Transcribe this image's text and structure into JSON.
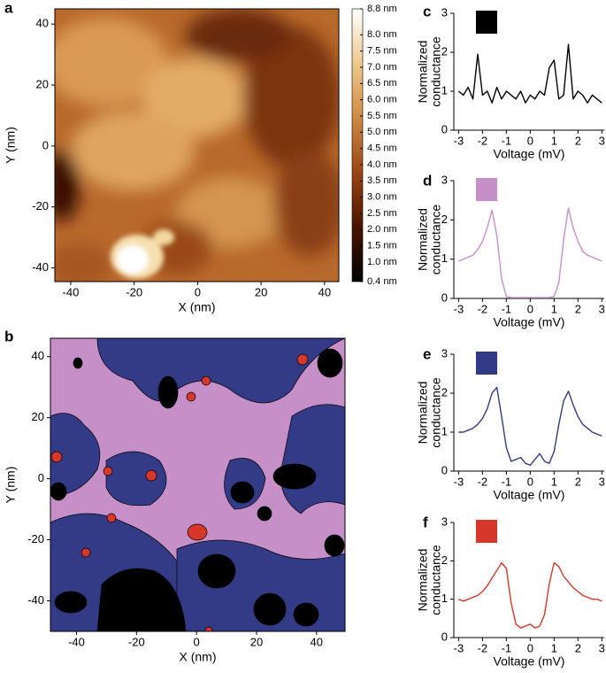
{
  "chart_data": [
    {
      "type": "image",
      "label": "a",
      "xlabel": "X (nm)",
      "ylabel": "Y (nm)",
      "xlim": [
        -45,
        44.5
      ],
      "ylim": [
        -44.5,
        45
      ],
      "xticks": [
        -40,
        -20,
        0,
        20,
        40
      ],
      "yticks": [
        -40,
        -20,
        0,
        20,
        40
      ],
      "colorbar": {
        "clim": [
          0.4,
          8.8
        ],
        "colormap": [
          "#000000",
          "#4a1400",
          "#9a4512",
          "#cf8a45",
          "#efc98c",
          "#ffffff"
        ],
        "ticks": [
          {
            "value": 8.8,
            "label": "8.8 nm"
          },
          {
            "value": 8.0,
            "label": "8.0 nm"
          },
          {
            "value": 7.5,
            "label": "7.5 nm"
          },
          {
            "value": 7.0,
            "label": "7.0 nm"
          },
          {
            "value": 6.5,
            "label": "6.5 nm"
          },
          {
            "value": 6.0,
            "label": "6.0 nm"
          },
          {
            "value": 5.5,
            "label": "5.5 nm"
          },
          {
            "value": 5.0,
            "label": "5.0 nm"
          },
          {
            "value": 4.5,
            "label": "4.5 nm"
          },
          {
            "value": 4.0,
            "label": "4.0 nm"
          },
          {
            "value": 3.5,
            "label": "3.5 nm"
          },
          {
            "value": 3.0,
            "label": "3.0 nm"
          },
          {
            "value": 2.5,
            "label": "2.5 nm"
          },
          {
            "value": 2.0,
            "label": "2.0 nm"
          },
          {
            "value": 1.5,
            "label": "1.5 nm"
          },
          {
            "value": 1.0,
            "label": "1.0 nm"
          },
          {
            "value": 0.4,
            "label": "0.4 nm"
          }
        ]
      }
    },
    {
      "type": "map",
      "label": "b",
      "xlabel": "X (nm)",
      "ylabel": "Y (nm)",
      "xlim": [
        -48.7,
        49.5
      ],
      "ylim": [
        -50,
        46
      ],
      "xticks": [
        -40,
        -20,
        0,
        20,
        40
      ],
      "yticks": [
        -40,
        -20,
        0,
        20,
        40
      ]
    },
    {
      "type": "line",
      "label": "c",
      "xlabel": "Voltage (mV)",
      "ylabel": [
        "Normalized",
        "conductance"
      ],
      "xlim": [
        -3.2,
        3.1
      ],
      "ylim": [
        0,
        3
      ],
      "xticks": [
        -3,
        -2,
        -1,
        0,
        1,
        2,
        3
      ],
      "yticks": [
        0,
        1,
        2,
        3
      ],
      "x": [
        -3,
        -2.8,
        -2.6,
        -2.4,
        -2.2,
        -2,
        -1.8,
        -1.6,
        -1.4,
        -1.2,
        -1,
        -0.8,
        -0.6,
        -0.4,
        -0.2,
        0,
        0.2,
        0.4,
        0.6,
        0.8,
        1,
        1.2,
        1.4,
        1.6,
        1.8,
        2,
        2.2,
        2.4,
        2.6,
        2.8,
        3
      ],
      "series": [
        {
          "color": "#000000",
          "values": [
            1.0,
            0.9,
            1.1,
            0.8,
            1.95,
            0.9,
            1.0,
            0.7,
            1.1,
            0.8,
            1.0,
            0.9,
            0.8,
            1.0,
            0.7,
            0.9,
            0.8,
            1.0,
            0.9,
            1.6,
            1.8,
            0.8,
            0.9,
            2.2,
            0.8,
            1.0,
            0.9,
            0.7,
            0.9,
            0.8,
            0.7
          ]
        }
      ]
    },
    {
      "type": "line",
      "label": "d",
      "xlabel": "Voltage (mV)",
      "ylabel": [
        "Normalized",
        "conductance"
      ],
      "xlim": [
        -3.2,
        3.1
      ],
      "ylim": [
        0,
        3
      ],
      "xticks": [
        -3,
        -2,
        -1,
        0,
        1,
        2,
        3
      ],
      "yticks": [
        0,
        1,
        2,
        3
      ],
      "x": [
        -3,
        -2.8,
        -2.6,
        -2.4,
        -2.2,
        -2,
        -1.8,
        -1.6,
        -1.4,
        -1.2,
        -1,
        -0.8,
        -0.6,
        -0.4,
        -0.2,
        0,
        0.2,
        0.4,
        0.6,
        0.8,
        1,
        1.2,
        1.4,
        1.6,
        1.8,
        2,
        2.2,
        2.4,
        2.6,
        2.8,
        3
      ],
      "series": [
        {
          "color": "#c68fc8",
          "values": [
            0.95,
            1.0,
            1.05,
            1.1,
            1.25,
            1.45,
            1.8,
            2.25,
            1.6,
            0.5,
            0.05,
            0.02,
            0.02,
            0.02,
            0.02,
            0.02,
            0.02,
            0.02,
            0.02,
            0.02,
            0.05,
            0.4,
            1.5,
            2.3,
            1.8,
            1.45,
            1.2,
            1.1,
            1.05,
            1.0,
            0.95
          ]
        }
      ]
    },
    {
      "type": "line",
      "label": "e",
      "xlabel": "Voltage (mV)",
      "ylabel": [
        "Normalized",
        "conductance"
      ],
      "xlim": [
        -3.2,
        3.1
      ],
      "ylim": [
        0,
        3
      ],
      "xticks": [
        -3,
        -2,
        -1,
        0,
        1,
        2,
        3
      ],
      "yticks": [
        0,
        1,
        2,
        3
      ],
      "x": [
        -3,
        -2.8,
        -2.6,
        -2.4,
        -2.2,
        -2,
        -1.8,
        -1.6,
        -1.4,
        -1.2,
        -1,
        -0.8,
        -0.6,
        -0.4,
        -0.2,
        0,
        0.2,
        0.4,
        0.6,
        0.8,
        1,
        1.2,
        1.4,
        1.6,
        1.8,
        2,
        2.2,
        2.4,
        2.6,
        2.8,
        3
      ],
      "series": [
        {
          "color": "#333a86",
          "values": [
            1.0,
            1.0,
            1.05,
            1.1,
            1.2,
            1.35,
            1.6,
            2.0,
            2.15,
            1.4,
            0.6,
            0.25,
            0.3,
            0.35,
            0.2,
            0.15,
            0.3,
            0.45,
            0.25,
            0.2,
            0.5,
            1.2,
            1.8,
            2.05,
            1.7,
            1.4,
            1.2,
            1.1,
            1.0,
            0.95,
            0.9
          ]
        }
      ]
    },
    {
      "type": "line",
      "label": "f",
      "xlabel": "Voltage (mV)",
      "ylabel": [
        "Normalized",
        "conductance"
      ],
      "xlim": [
        -3.2,
        3.1
      ],
      "ylim": [
        0,
        3
      ],
      "xticks": [
        -3,
        -2,
        -1,
        0,
        1,
        2,
        3
      ],
      "yticks": [
        0,
        1,
        2,
        3
      ],
      "x": [
        -3,
        -2.8,
        -2.6,
        -2.4,
        -2.2,
        -2,
        -1.8,
        -1.6,
        -1.4,
        -1.2,
        -1,
        -0.8,
        -0.6,
        -0.4,
        -0.2,
        0,
        0.2,
        0.4,
        0.6,
        0.8,
        1,
        1.2,
        1.4,
        1.6,
        1.8,
        2,
        2.2,
        2.4,
        2.6,
        2.8,
        3
      ],
      "series": [
        {
          "color": "#d6372b",
          "values": [
            1.0,
            0.95,
            1.0,
            1.05,
            1.1,
            1.2,
            1.35,
            1.55,
            1.75,
            1.95,
            1.8,
            0.9,
            0.35,
            0.25,
            0.3,
            0.35,
            0.25,
            0.3,
            0.6,
            1.4,
            1.95,
            1.85,
            1.6,
            1.45,
            1.3,
            1.2,
            1.1,
            1.05,
            1.0,
            1.0,
            0.95
          ]
        }
      ]
    }
  ]
}
